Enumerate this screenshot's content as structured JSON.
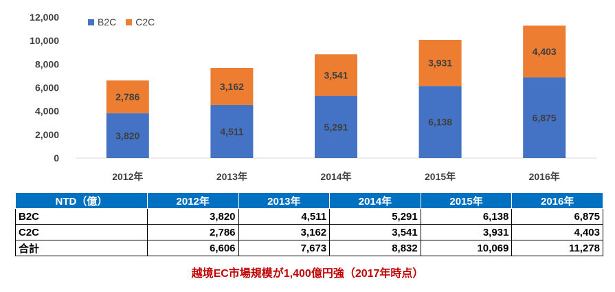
{
  "chart_data": {
    "type": "bar",
    "stacked": true,
    "categories": [
      "2012年",
      "2013年",
      "2014年",
      "2015年",
      "2016年"
    ],
    "series": [
      {
        "name": "B2C",
        "values": [
          3820,
          4511,
          5291,
          6138,
          6875
        ],
        "color": "#4472c4"
      },
      {
        "name": "C2C",
        "values": [
          2786,
          3162,
          3541,
          3931,
          4403
        ],
        "color": "#ed7d31"
      }
    ],
    "value_labels": {
      "B2C": [
        "3,820",
        "4,511",
        "5,291",
        "6,138",
        "6,875"
      ],
      "C2C": [
        "2,786",
        "3,162",
        "3,541",
        "3,931",
        "4,403"
      ]
    },
    "y_ticks": [
      "0",
      "2,000",
      "4,000",
      "6,000",
      "8,000",
      "10,000",
      "12,000"
    ],
    "ylim": [
      0,
      12000
    ],
    "legend_position": "top-left",
    "grid": false
  },
  "table": {
    "corner": "NTD（億）",
    "headers": [
      "2012年",
      "2013年",
      "2014年",
      "2015年",
      "2016年"
    ],
    "rows": [
      {
        "label": "B2C",
        "values": [
          "3,820",
          "4,511",
          "5,291",
          "6,138",
          "6,875"
        ]
      },
      {
        "label": "C2C",
        "values": [
          "2,786",
          "3,162",
          "3,541",
          "3,931",
          "4,403"
        ]
      },
      {
        "label": "合計",
        "values": [
          "6,606",
          "7,673",
          "8,832",
          "10,069",
          "11,278"
        ]
      }
    ]
  },
  "caption": "越境EC市場規模が1,400億円強（2017年時点）"
}
